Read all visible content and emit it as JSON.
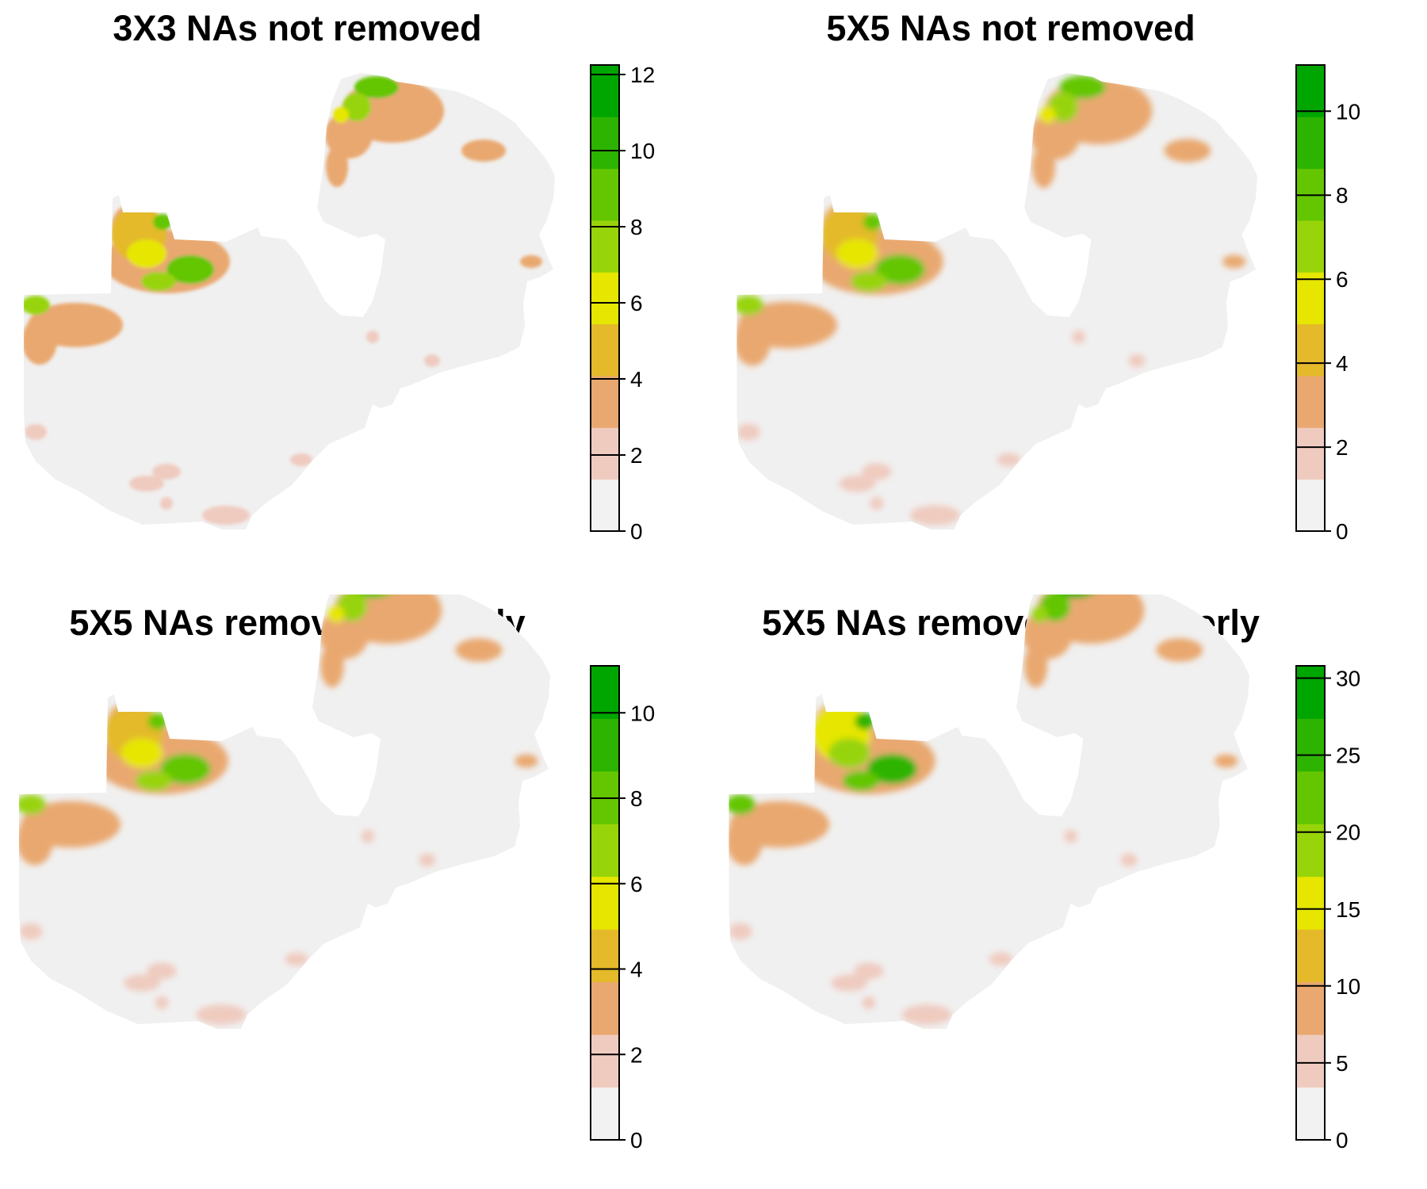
{
  "panels": [
    {
      "title": "3X3 NAs not removed",
      "legend": {
        "min": 0,
        "max": 12.25,
        "ticks": [
          0,
          2,
          4,
          6,
          8,
          10,
          12
        ],
        "tick_labels": [
          "0",
          "2",
          "4",
          "6",
          "8",
          "10",
          "12"
        ]
      },
      "variant": "3x3"
    },
    {
      "title": "5X5 NAs not removed",
      "legend": {
        "min": 0,
        "max": 11.1,
        "ticks": [
          0,
          2,
          4,
          6,
          8,
          10
        ],
        "tick_labels": [
          "0",
          "2",
          "4",
          "6",
          "8",
          "10"
        ]
      },
      "variant": "5x5"
    },
    {
      "title": "5X5 NAs removed properly",
      "legend": {
        "min": 0,
        "max": 11.1,
        "ticks": [
          0,
          2,
          4,
          6,
          8,
          10
        ],
        "tick_labels": [
          "0",
          "2",
          "4",
          "6",
          "8",
          "10"
        ]
      },
      "variant": "5x5-proper"
    },
    {
      "title": "5X5 NAs removed improperly",
      "legend": {
        "min": 0,
        "max": 30.8,
        "ticks": [
          0,
          5,
          10,
          15,
          20,
          25,
          30
        ],
        "tick_labels": [
          "0",
          "5",
          "10",
          "15",
          "20",
          "25",
          "30"
        ]
      },
      "variant": "5x5-improper"
    }
  ],
  "colors": {
    "ramp": [
      "#F2F2F2",
      "#EFCBBF",
      "#E9A870",
      "#E4B92A",
      "#E6E600",
      "#98D40A",
      "#63C600",
      "#2DB400",
      "#00A600"
    ],
    "background": "#F0F0F0"
  }
}
